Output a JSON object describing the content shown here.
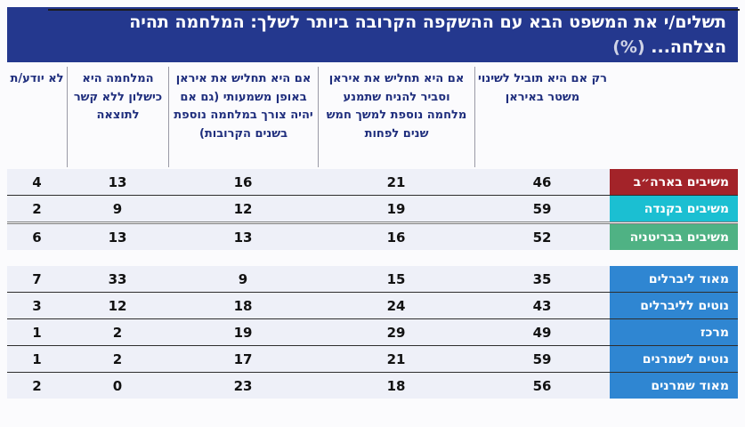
{
  "page": {
    "banner": {
      "line1": "תשלים/י את המשפט הבא עם ההשקפה הקרובה ביותר לשלך: המלחמה תהיה",
      "line2": "הצלחה...",
      "percent": "(%)",
      "bg_color": "#24388e",
      "text_color": "#ffffff"
    },
    "colors": {
      "row_background": "#eef0f8",
      "header_text": "#1f2e7d",
      "usa_label": "#a32329",
      "canada_label": "#1bbfd2",
      "britain_label": "#4fb284",
      "ideology_label": "#2f86d2"
    }
  },
  "chart_data": {
    "type": "table",
    "title": "תשלים/י את המשפט הבא עם ההשקפה הקרובה ביותר לשלך: המלחמה תהיה הצלחה... (%)",
    "direction": "rtl",
    "columns_rtl": [
      "רק אם היא תוביל לשינוי משטר באיראן",
      "אם היא תחליש את איראן וסביר להניח שתמנע מלחמה נוספת למשך חמש שנים לפחות",
      "אם היא תחליש את איראן באופן משמעותי (גם אם יהיה צורך במלחמה נוספת בשנים הקרובות)",
      "המלחמה היא כישלון ללא קשר לתוצאה",
      "לא יודע/ת"
    ],
    "groups": [
      {
        "name": "respondents-by-country",
        "rows": [
          {
            "label": "משיבים בארה״ב",
            "color": "#a32329",
            "values": [
              46,
              21,
              16,
              13,
              4
            ]
          },
          {
            "label": "משיבים בקנדה",
            "color": "#1bbfd2",
            "values": [
              59,
              19,
              12,
              9,
              2
            ]
          },
          {
            "label": "משיבים בבריטניה",
            "color": "#4fb284",
            "values": [
              52,
              16,
              13,
              13,
              6
            ]
          }
        ]
      },
      {
        "name": "respondents-by-ideology",
        "rows": [
          {
            "label": "מאוד ליברלים",
            "color": "#2f86d2",
            "values": [
              35,
              15,
              9,
              33,
              7
            ]
          },
          {
            "label": "נוטים לליברלים",
            "color": "#2f86d2",
            "values": [
              43,
              24,
              18,
              12,
              3
            ]
          },
          {
            "label": "מרכז",
            "color": "#2f86d2",
            "values": [
              49,
              29,
              19,
              2,
              1
            ]
          },
          {
            "label": "נוטים לשמרנים",
            "color": "#2f86d2",
            "values": [
              59,
              21,
              17,
              2,
              1
            ]
          },
          {
            "label": "מאוד שמרנים",
            "color": "#2f86d2",
            "values": [
              56,
              18,
              23,
              0,
              2
            ]
          }
        ]
      }
    ]
  }
}
